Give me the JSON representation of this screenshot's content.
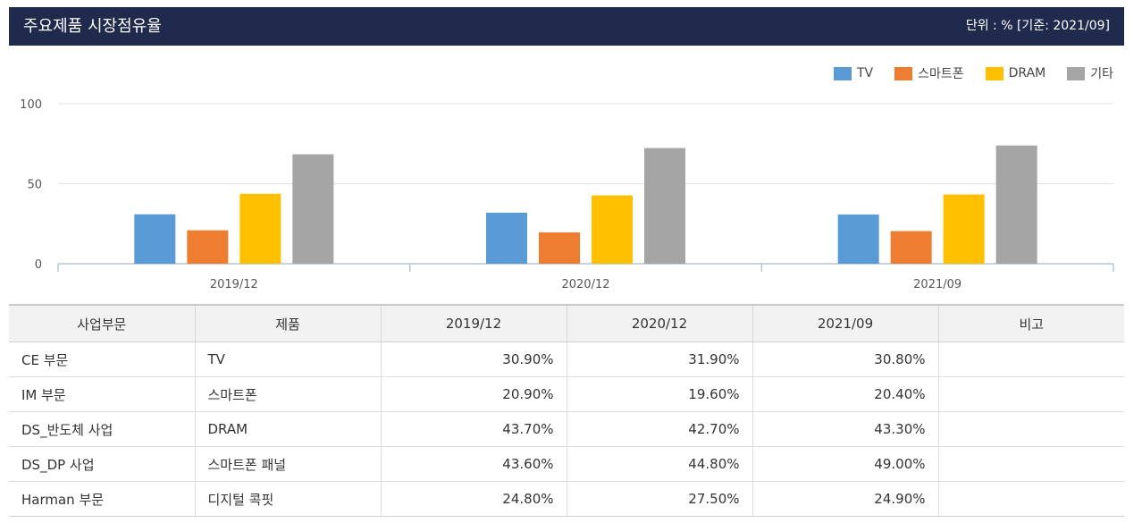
{
  "header": {
    "title": "주요제품 시장점유율",
    "unit": "단위 : % [기준: 2021/09]"
  },
  "legend": [
    {
      "label": "TV",
      "color": "#5b9bd5"
    },
    {
      "label": "스마트폰",
      "color": "#ed7d31"
    },
    {
      "label": "DRAM",
      "color": "#ffc000"
    },
    {
      "label": "기타",
      "color": "#a5a5a5"
    }
  ],
  "chart_data": {
    "type": "bar",
    "categories": [
      "2019/12",
      "2020/12",
      "2021/09"
    ],
    "series": [
      {
        "name": "TV",
        "values": [
          30.9,
          31.9,
          30.8
        ],
        "color": "#5b9bd5"
      },
      {
        "name": "스마트폰",
        "values": [
          20.9,
          19.6,
          20.4
        ],
        "color": "#ed7d31"
      },
      {
        "name": "DRAM",
        "values": [
          43.7,
          42.7,
          43.3
        ],
        "color": "#ffc000"
      },
      {
        "name": "기타",
        "values": [
          68.4,
          72.3,
          73.9
        ],
        "color": "#a5a5a5"
      }
    ],
    "yticks": [
      "0",
      "50",
      "100"
    ],
    "ylim": [
      0,
      100
    ],
    "grid": true,
    "legend_position": "top-right",
    "title": "",
    "xlabel": "",
    "ylabel": ""
  },
  "table": {
    "headers": [
      "사업부문",
      "제품",
      "2019/12",
      "2020/12",
      "2021/09",
      "비고"
    ],
    "rows": [
      [
        "CE 부문",
        "TV",
        "30.90%",
        "31.90%",
        "30.80%",
        ""
      ],
      [
        "IM 부문",
        "스마트폰",
        "20.90%",
        "19.60%",
        "20.40%",
        ""
      ],
      [
        "DS_반도체 사업",
        "DRAM",
        "43.70%",
        "42.70%",
        "43.30%",
        ""
      ],
      [
        "DS_DP 사업",
        "스마트폰 패널",
        "43.60%",
        "44.80%",
        "49.00%",
        ""
      ],
      [
        "Harman 부문",
        "디지털 콕핏",
        "24.80%",
        "27.50%",
        "24.90%",
        ""
      ]
    ]
  }
}
